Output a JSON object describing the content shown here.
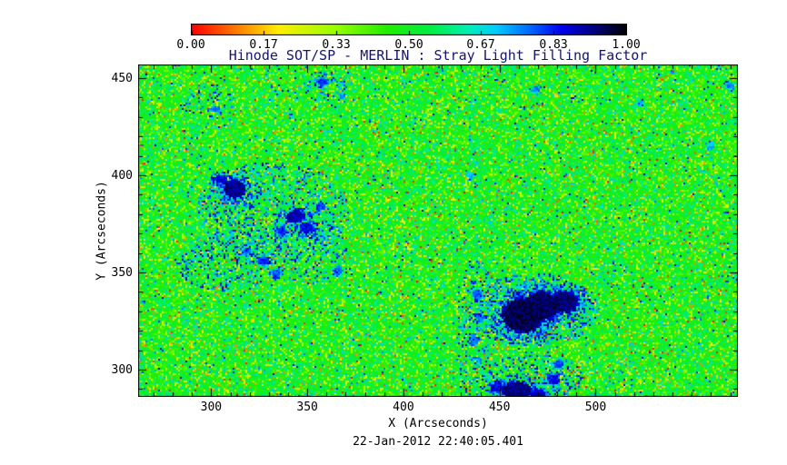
{
  "figure": {
    "timestamp": "22-Jan-2012 22:40:05.401",
    "background_color": "#ffffff",
    "title_color": "#14146e",
    "text_color": "#000000"
  },
  "chart_data": {
    "type": "heatmap",
    "title": "Hinode SOT/SP - MERLIN : Stray Light Filling Factor",
    "xlabel": "X (Arcseconds)",
    "ylabel": "Y (Arcseconds)",
    "x_range": [
      262,
      574
    ],
    "y_range": [
      286,
      457
    ],
    "x_ticks": [
      300,
      350,
      400,
      450,
      500
    ],
    "y_ticks": [
      300,
      350,
      400,
      450
    ],
    "x_minor_tick_step": 10,
    "y_minor_tick_step": 10,
    "value_label": "Stray Light Filling Factor",
    "value_range": [
      0,
      1
    ],
    "colorbar_position": "top",
    "colorbar_ticks": [
      "0.00",
      "0.17",
      "0.33",
      "0.50",
      "0.67",
      "0.83",
      "1.00"
    ],
    "colormap": [
      {
        "pos": 0.0,
        "color": "#ff0000"
      },
      {
        "pos": 0.1,
        "color": "#ff7700"
      },
      {
        "pos": 0.2,
        "color": "#ffee00"
      },
      {
        "pos": 0.33,
        "color": "#99ff00"
      },
      {
        "pos": 0.45,
        "color": "#22ee00"
      },
      {
        "pos": 0.55,
        "color": "#00ee44"
      },
      {
        "pos": 0.64,
        "color": "#00eebb"
      },
      {
        "pos": 0.7,
        "color": "#00ccff"
      },
      {
        "pos": 0.78,
        "color": "#0066ff"
      },
      {
        "pos": 0.85,
        "color": "#0000ee"
      },
      {
        "pos": 0.93,
        "color": "#000077"
      },
      {
        "pos": 1.0,
        "color": "#000000"
      }
    ],
    "description": "Granular speckle field of filling factor ~0.25-0.65 (green/yellow with sparse orange, red, cyan and blue speckles) over the full field of view; dark (value ~0.8-1.0) pore/sunspot features concentrated in an upper-left cluster around (310-365, 350-400), a large sunspot complex around (445-495, 315-345), small pores near the bottom edge around (445-485, 285-305), and scattered small dark points.",
    "background_field": {
      "base_range": [
        0.34,
        0.64
      ],
      "speckles": [
        {
          "chance": 0.1,
          "min": 0.22,
          "max": 0.36
        },
        {
          "chance": 0.04,
          "min": 0.1,
          "max": 0.22
        },
        {
          "chance": 0.012,
          "min": 0.0,
          "max": 0.1
        },
        {
          "chance": 0.08,
          "min": 0.58,
          "max": 0.72
        },
        {
          "chance": 0.02,
          "min": 0.72,
          "max": 0.88
        }
      ]
    },
    "dark_features": [
      {
        "x": 462,
        "y": 328,
        "rx": 13,
        "ry": 11,
        "value": 0.99
      },
      {
        "x": 472,
        "y": 333,
        "rx": 10,
        "ry": 9,
        "value": 0.985
      },
      {
        "x": 484,
        "y": 335,
        "rx": 9,
        "ry": 7,
        "value": 0.97
      },
      {
        "x": 459,
        "y": 289,
        "rx": 9,
        "ry": 6,
        "value": 0.96
      },
      {
        "x": 449,
        "y": 291,
        "rx": 4,
        "ry": 3,
        "value": 0.9
      },
      {
        "x": 470,
        "y": 287,
        "rx": 5,
        "ry": 4,
        "value": 0.92
      },
      {
        "x": 478,
        "y": 295,
        "rx": 4,
        "ry": 3.5,
        "value": 0.88
      },
      {
        "x": 481,
        "y": 303,
        "rx": 3,
        "ry": 3,
        "value": 0.85
      },
      {
        "x": 438,
        "y": 339,
        "rx": 3,
        "ry": 3,
        "value": 0.82
      },
      {
        "x": 440,
        "y": 327,
        "rx": 2.5,
        "ry": 2.5,
        "value": 0.8
      },
      {
        "x": 437,
        "y": 315,
        "rx": 2.5,
        "ry": 3,
        "value": 0.8
      },
      {
        "x": 439,
        "y": 305,
        "rx": 2,
        "ry": 2,
        "value": 0.78
      },
      {
        "x": 312,
        "y": 393,
        "rx": 7,
        "ry": 6,
        "value": 0.96
      },
      {
        "x": 305,
        "y": 398,
        "rx": 4,
        "ry": 3,
        "value": 0.9
      },
      {
        "x": 344,
        "y": 379,
        "rx": 6,
        "ry": 4,
        "value": 0.93
      },
      {
        "x": 350,
        "y": 373,
        "rx": 4,
        "ry": 3.5,
        "value": 0.9
      },
      {
        "x": 337,
        "y": 371,
        "rx": 3,
        "ry": 3,
        "value": 0.86
      },
      {
        "x": 357,
        "y": 384,
        "rx": 3,
        "ry": 2.5,
        "value": 0.85
      },
      {
        "x": 327,
        "y": 356,
        "rx": 4,
        "ry": 3,
        "value": 0.86
      },
      {
        "x": 334,
        "y": 350,
        "rx": 3,
        "ry": 2.5,
        "value": 0.82
      },
      {
        "x": 318,
        "y": 361,
        "rx": 2.5,
        "ry": 2.5,
        "value": 0.8
      },
      {
        "x": 366,
        "y": 351,
        "rx": 3,
        "ry": 2.5,
        "value": 0.82
      },
      {
        "x": 303,
        "y": 434,
        "rx": 2.5,
        "ry": 2,
        "value": 0.8
      },
      {
        "x": 358,
        "y": 448,
        "rx": 3.5,
        "ry": 2.5,
        "value": 0.85
      },
      {
        "x": 368,
        "y": 441,
        "rx": 2,
        "ry": 2,
        "value": 0.78
      },
      {
        "x": 469,
        "y": 444,
        "rx": 2.5,
        "ry": 2,
        "value": 0.8
      },
      {
        "x": 523,
        "y": 437,
        "rx": 2,
        "ry": 2,
        "value": 0.76
      },
      {
        "x": 560,
        "y": 415,
        "rx": 2.5,
        "ry": 2,
        "value": 0.75
      },
      {
        "x": 570,
        "y": 446,
        "rx": 3,
        "ry": 2,
        "value": 0.8
      },
      {
        "x": 435,
        "y": 400,
        "rx": 2,
        "ry": 2,
        "value": 0.75
      }
    ],
    "speckle_regions": [
      {
        "x": 332,
        "y": 382,
        "rx": 40,
        "ry": 25,
        "chance": 0.25
      },
      {
        "x": 310,
        "y": 355,
        "rx": 28,
        "ry": 16,
        "chance": 0.2
      },
      {
        "x": 352,
        "y": 362,
        "rx": 20,
        "ry": 18,
        "chance": 0.2
      },
      {
        "x": 438,
        "y": 320,
        "rx": 10,
        "ry": 38,
        "chance": 0.18
      },
      {
        "x": 468,
        "y": 331,
        "rx": 34,
        "ry": 19,
        "chance": 0.3
      },
      {
        "x": 468,
        "y": 296,
        "rx": 26,
        "ry": 12,
        "chance": 0.3
      },
      {
        "x": 312,
        "y": 393,
        "rx": 14,
        "ry": 10,
        "chance": 0.3
      },
      {
        "x": 300,
        "y": 435,
        "rx": 15,
        "ry": 12,
        "chance": 0.15
      },
      {
        "x": 360,
        "y": 446,
        "rx": 12,
        "ry": 8,
        "chance": 0.2
      }
    ]
  }
}
